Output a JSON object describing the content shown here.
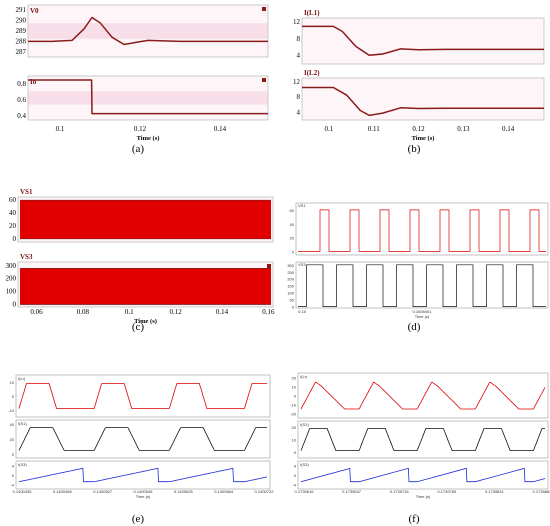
{
  "captions": [
    "(a)",
    "(b)",
    "(c)",
    "(d)",
    "(e)",
    "(f)"
  ],
  "colors": {
    "dark_red": "#8b1a1a",
    "red": "#e00000",
    "blue": "#1a2ad8",
    "black": "#111111",
    "pink_band": "#f2c4d8"
  },
  "chart_data": [
    {
      "type": "line",
      "panel": "a",
      "xlabel": "Time (s)",
      "xticks": [
        "0.1",
        "0.12",
        "0.14"
      ],
      "xlim": [
        0.092,
        0.152
      ],
      "subplots": [
        {
          "name": "V0",
          "yticks": [
            "291",
            "290",
            "289",
            "288",
            "287"
          ],
          "ylim": [
            286.5,
            291.5
          ],
          "series": [
            {
              "name": "V0",
              "x": [
                0.092,
                0.098,
                0.103,
                0.106,
                0.108,
                0.11,
                0.113,
                0.116,
                0.119,
                0.122,
                0.126,
                0.13,
                0.135,
                0.152
              ],
              "values": [
                288,
                288,
                288.1,
                289.2,
                290.3,
                289.8,
                288.4,
                287.7,
                287.9,
                288.1,
                288.05,
                288,
                288,
                288
              ]
            }
          ]
        },
        {
          "name": "Io",
          "yticks": [
            "0.8",
            "0.6",
            "0.4"
          ],
          "ylim": [
            0.35,
            0.9
          ],
          "series": [
            {
              "name": "Io",
              "x": [
                0.092,
                0.1079,
                0.108,
                0.152
              ],
              "values": [
                0.85,
                0.85,
                0.43,
                0.43
              ]
            }
          ]
        }
      ]
    },
    {
      "type": "line",
      "panel": "b",
      "xlabel": "Time (s)",
      "xticks": [
        "0.1",
        "0.11",
        "0.12",
        "0.13",
        "0.14"
      ],
      "xlim": [
        0.094,
        0.148
      ],
      "subplots": [
        {
          "name": "I(L1)",
          "yticks": [
            "12",
            "8",
            "4"
          ],
          "ylim": [
            2,
            13
          ],
          "series": [
            {
              "name": "I(L1)",
              "x": [
                0.094,
                0.101,
                0.103,
                0.106,
                0.109,
                0.112,
                0.116,
                0.12,
                0.126,
                0.148
              ],
              "values": [
                11,
                11,
                9.8,
                6.2,
                4.1,
                4.4,
                5.6,
                5.4,
                5.5,
                5.5
              ]
            }
          ]
        },
        {
          "name": "I(L2)",
          "yticks": [
            "12",
            "8",
            "4"
          ],
          "ylim": [
            2,
            13
          ],
          "series": [
            {
              "name": "I(L2)",
              "x": [
                0.094,
                0.101,
                0.104,
                0.107,
                0.109,
                0.112,
                0.116,
                0.12,
                0.126,
                0.148
              ],
              "values": [
                10.5,
                10.5,
                8.5,
                4.5,
                3.2,
                3.8,
                5.2,
                5,
                5.1,
                5.1
              ]
            }
          ]
        }
      ]
    },
    {
      "type": "line",
      "panel": "c",
      "xlabel": "Time (s)",
      "xticks": [
        "0.06",
        "0.08",
        "0.1",
        "0.12",
        "0.14",
        "0.16"
      ],
      "xlim": [
        0.052,
        0.162
      ],
      "subplots": [
        {
          "name": "VS1",
          "yticks": [
            "60",
            "40",
            "20",
            "0"
          ],
          "ylim": [
            -5,
            65
          ],
          "switching_band": [
            0,
            60
          ]
        },
        {
          "name": "VS3",
          "yticks": [
            "300",
            "200",
            "100",
            "0"
          ],
          "ylim": [
            -20,
            330
          ],
          "switching_band": [
            0,
            280
          ]
        }
      ]
    },
    {
      "type": "line",
      "panel": "d",
      "xticks": [
        "0.15",
        "0.1505001"
      ],
      "xlabel": "Time (s)",
      "subplots": [
        {
          "name": "VS1",
          "yticks": [
            "60",
            "40",
            "20",
            "0"
          ],
          "ylim": [
            -5,
            70
          ],
          "pulses": 8,
          "high": 60,
          "low": 0
        },
        {
          "name": "VS3",
          "yticks": [
            "300",
            "250",
            "200",
            "150",
            "100",
            "50",
            "0"
          ],
          "ylim": [
            -10,
            320
          ],
          "pulses": 8,
          "high": 300,
          "low": 0
        }
      ]
    },
    {
      "type": "line",
      "panel": "e",
      "xlabel": "Time (s)",
      "xticks": [
        "0.1400436",
        "0.1400466",
        "0.1400507",
        "0.1400546",
        "0.1400625",
        "0.1400664",
        "0.1400722"
      ],
      "subplots": [
        {
          "name": "I(Lr)",
          "yticks": [
            "10",
            "0",
            "-10"
          ],
          "ylim": [
            -15,
            15
          ]
        },
        {
          "name": "I(S1)",
          "yticks": [
            "40",
            "20",
            "0"
          ],
          "ylim": [
            -5,
            45
          ]
        },
        {
          "name": "I(S3)",
          "yticks": [
            "4",
            "0",
            "-4"
          ],
          "ylim": [
            -6,
            6
          ]
        }
      ]
    },
    {
      "type": "line",
      "panel": "f",
      "xlabel": "Time (s)",
      "xticks": [
        "0.1739616",
        "0.1739647",
        "0.1739716",
        "0.1739765",
        "0.1739841",
        "0.1739883"
      ],
      "subplots": [
        {
          "name": "I(Lr)",
          "yticks": [
            "20",
            "10",
            "0",
            "-10",
            "-20"
          ],
          "ylim": [
            -25,
            25
          ]
        },
        {
          "name": "I(S1)",
          "yticks": [
            "20",
            "10",
            "0"
          ],
          "ylim": [
            -5,
            25
          ]
        },
        {
          "name": "I(S3)",
          "yticks": [
            "4",
            "0",
            "-4"
          ],
          "ylim": [
            -6,
            6
          ]
        }
      ]
    }
  ]
}
